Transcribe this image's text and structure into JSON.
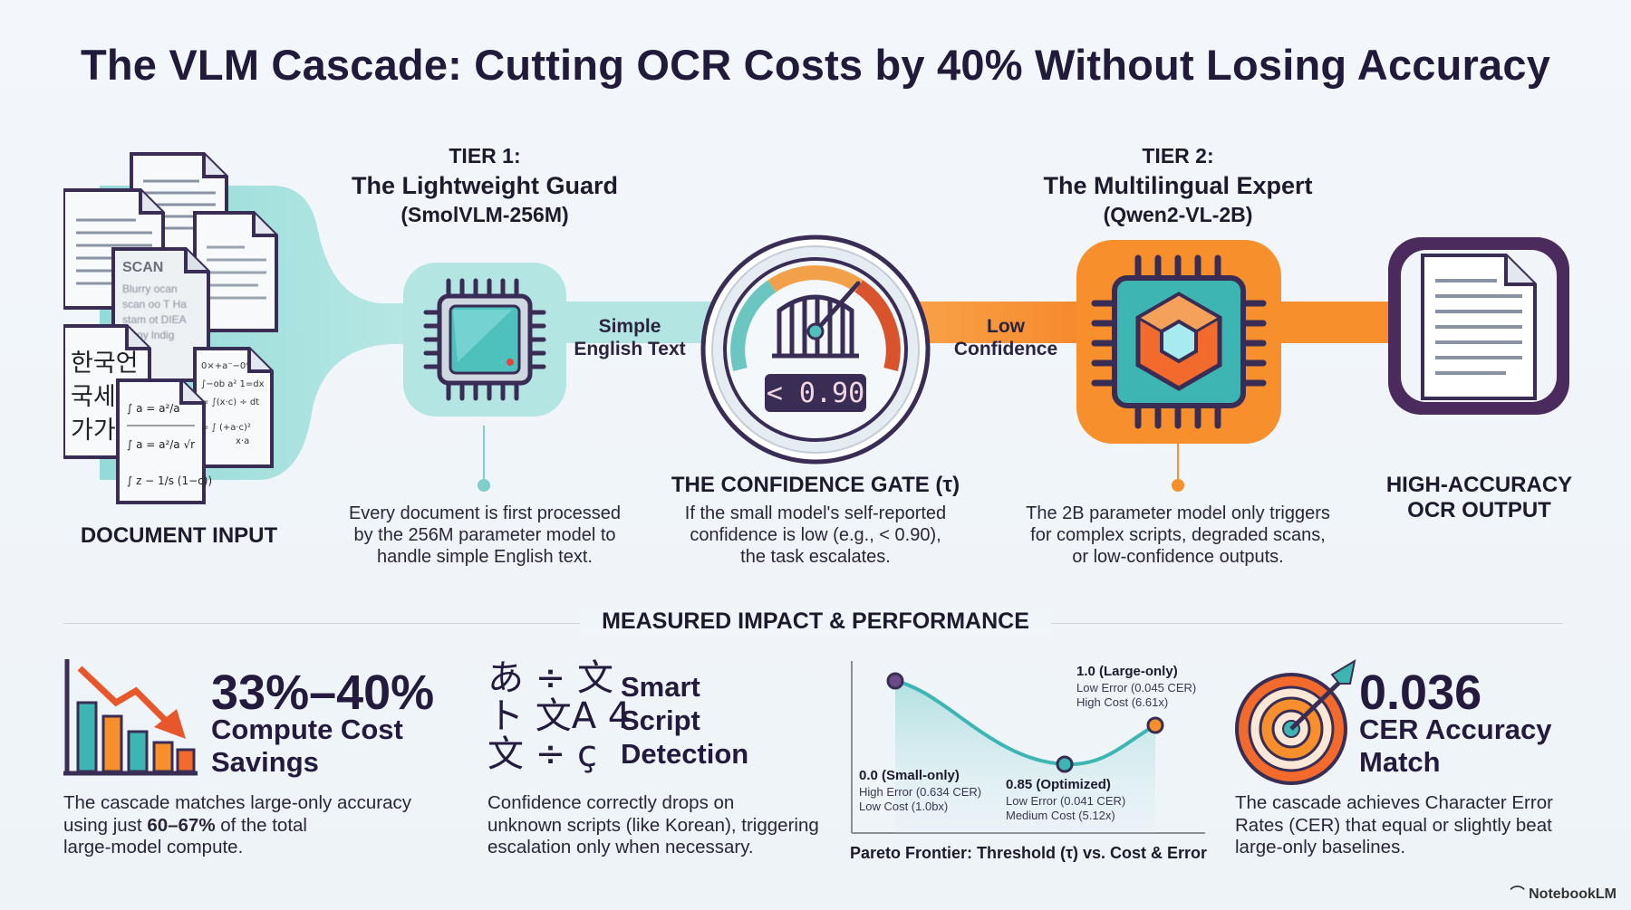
{
  "title": "The VLM Cascade: Cutting OCR Costs by 40% Without Losing Accuracy",
  "colors": {
    "teal": "#7ed3d2",
    "orange": "#f68f2c",
    "purple": "#4b2a5d",
    "navy": "#241a3e"
  },
  "input": {
    "label": "DOCUMENT INPUT",
    "doc_scan_label": "SCAN",
    "doc_scan_text": "Blurry ocan\nscan oo T Ha\nstam ot DIEA\nbleny lndig",
    "doc_korean_text": "한국언\n국세직\n가가",
    "doc_math_text": "∫ a = a²/a\n∫ a = a²/a √r\n∫ z − 1/s (1−c))",
    "doc_math2_text": "0×+a⁻−0⁴\n∫−ob a² 1=dx\n= ∫(x·c) ÷ dt\n= ∫ (+a·c)²/x·a"
  },
  "tier1": {
    "tier": "TIER 1:",
    "name": "The Lightweight Guard",
    "model": "(SmolVLM-256M)",
    "description": "Every document is first processed\nby the 256M parameter model to\nhandle simple English text."
  },
  "flow": {
    "simple_label": "Simple\nEnglish Text",
    "low_label": "Low\nConfidence"
  },
  "gate": {
    "title": "THE CONFIDENCE GATE (τ)",
    "display": "< 0.90",
    "description": "If the small model's self-reported\nconfidence is low (e.g., < 0.90),\nthe task escalates."
  },
  "tier2": {
    "tier": "TIER 2:",
    "name": "The Multilingual Expert",
    "model": "(Qwen2-VL-2B)",
    "description": "The 2B parameter model only triggers\nfor complex scripts, degraded scans,\nor low-confidence outputs."
  },
  "output": {
    "label": "HIGH-ACCURACY\nOCR OUTPUT"
  },
  "measured": {
    "heading": "MEASURED IMPACT & PERFORMANCE",
    "savings": {
      "big": "33%–40%",
      "sub": "Compute Cost\nSavings",
      "text_before": "The cascade matches large-only accuracy\nusing just ",
      "text_bold": "60–67%",
      "text_after": " of the total\nlarge-model compute."
    },
    "script": {
      "glyphs": "あ ÷ 文\nト 文A 4\n文 ÷ ç",
      "sub": "Smart\nScript\nDetection",
      "text": "Confidence correctly drops on\nunknown scripts (like Korean), triggering\nescalation only when necessary."
    },
    "accuracy": {
      "big": "0.036",
      "sub": "CER Accuracy\nMatch",
      "text": "The cascade achieves Character Error\nRates (CER) that equal or slightly beat\nlarge-only baselines."
    }
  },
  "chart_data": {
    "type": "line",
    "caption": "Pareto Frontier: Threshold (τ) vs. Cost & Error",
    "points": [
      {
        "tau": 0.0,
        "label": "0.0 (Small-only)",
        "error_text": "High Error (0.634 CER)",
        "cost_text": "Low Cost (1.0bx)"
      },
      {
        "tau": 0.85,
        "label": "0.85 (Optimized)",
        "error_text": "Low Error (0.041 CER)",
        "cost_text": "Medium Cost (5.12x)"
      },
      {
        "tau": 1.0,
        "label": "1.0 (Large-only)",
        "error_text": "Low Error (0.045 CER)",
        "cost_text": "High Cost (6.61x)"
      }
    ],
    "cer": [
      0.634,
      0.041,
      0.045
    ],
    "cost_x": [
      1.0,
      5.12,
      6.61
    ]
  },
  "footer": {
    "brand": "NotebookLM"
  }
}
